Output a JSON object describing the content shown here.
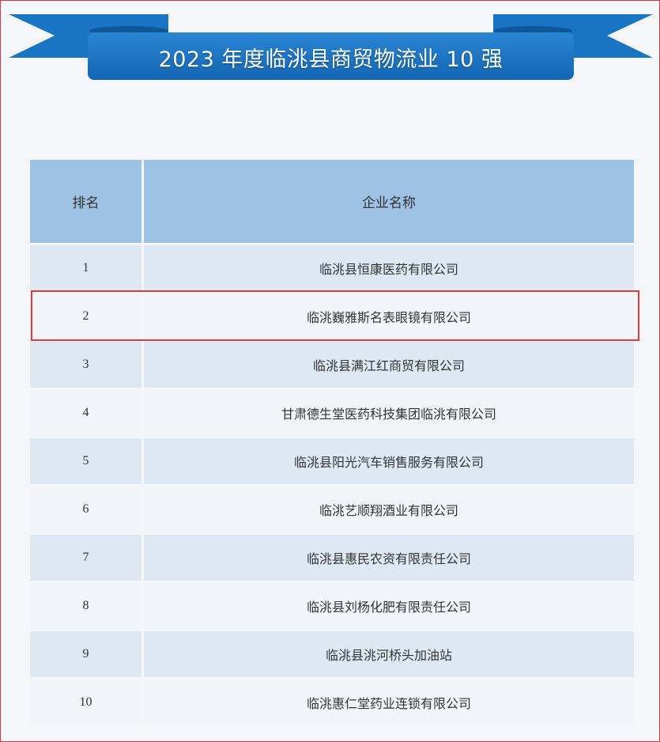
{
  "title": "2023 年度临洮县商贸物流业 10 强",
  "colors": {
    "banner": "#1a73c2",
    "header": "#9ec2e4",
    "row_alt": "#dde8f3",
    "highlight": "#e0393e"
  },
  "table": {
    "headers": [
      "排名",
      "企业名称"
    ],
    "rows": [
      {
        "rank": "1",
        "name": "临洮县恒康医药有限公司"
      },
      {
        "rank": "2",
        "name": "临洮巍雅斯名表眼镜有限公司"
      },
      {
        "rank": "3",
        "name": "临洮县满江红商贸有限公司"
      },
      {
        "rank": "4",
        "name": "甘肃德生堂医药科技集团临洮有限公司"
      },
      {
        "rank": "5",
        "name": "临洮县阳光汽车销售服务有限公司"
      },
      {
        "rank": "6",
        "name": "临洮艺顺翔酒业有限公司"
      },
      {
        "rank": "7",
        "name": "临洮县惠民农资有限责任公司"
      },
      {
        "rank": "8",
        "name": "临洮县刘杨化肥有限责任公司"
      },
      {
        "rank": "9",
        "name": "临洮县洮河桥头加油站"
      },
      {
        "rank": "10",
        "name": "临洮惠仁堂药业连锁有限公司"
      }
    ],
    "highlighted_rank": "2"
  }
}
